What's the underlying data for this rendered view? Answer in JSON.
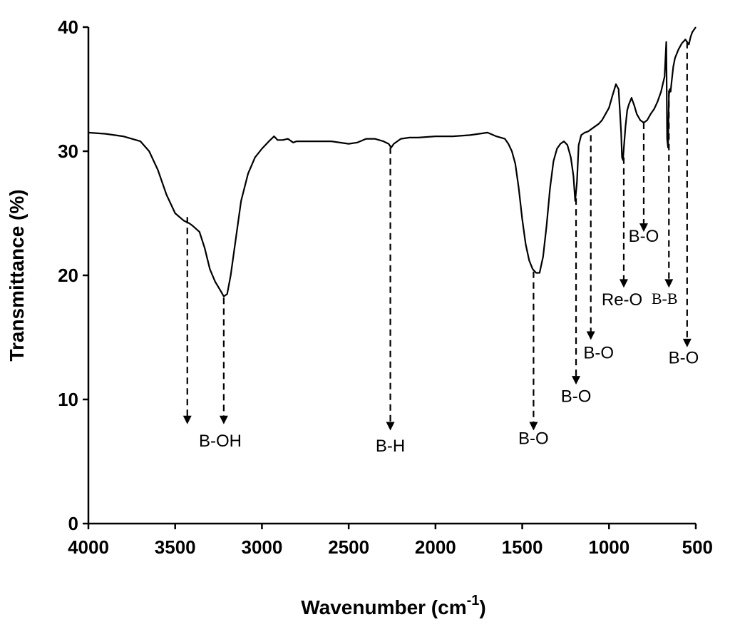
{
  "chart_data": {
    "type": "line",
    "xlabel": "Wavenumber (cm",
    "xlabel_superscript": "-1",
    "xlabel_close": ")",
    "ylabel": "Transmittance (%)",
    "xlim": [
      4000,
      500
    ],
    "ylim": [
      0,
      40
    ],
    "x_reversed": true,
    "grid": false,
    "legend": false,
    "x_ticks": [
      {
        "value": 4000,
        "label": "4000"
      },
      {
        "value": 3500,
        "label": "3500"
      },
      {
        "value": 3000,
        "label": "3000"
      },
      {
        "value": 2500,
        "label": "2500"
      },
      {
        "value": 2000,
        "label": "2000"
      },
      {
        "value": 1500,
        "label": "1500"
      },
      {
        "value": 1000,
        "label": "1000"
      },
      {
        "value": 500,
        "label": "500"
      }
    ],
    "y_ticks": [
      {
        "value": 0,
        "label": "0"
      },
      {
        "value": 10,
        "label": "10"
      },
      {
        "value": 20,
        "label": "20"
      },
      {
        "value": 30,
        "label": "30"
      },
      {
        "value": 40,
        "label": "40"
      }
    ],
    "line_color": "#000000",
    "series": [
      {
        "x": [
          4000,
          3900,
          3800,
          3700,
          3650,
          3600,
          3550,
          3500,
          3450,
          3420,
          3400,
          3360,
          3330,
          3300,
          3270,
          3240,
          3220,
          3200,
          3180,
          3150,
          3120,
          3080,
          3040,
          3000,
          2960,
          2930,
          2910,
          2880,
          2850,
          2820,
          2800,
          2700,
          2600,
          2500,
          2450,
          2400,
          2350,
          2300,
          2270,
          2255,
          2240,
          2200,
          2150,
          2100,
          2000,
          1900,
          1800,
          1700,
          1650,
          1600,
          1580,
          1560,
          1540,
          1520,
          1500,
          1480,
          1460,
          1440,
          1420,
          1400,
          1380,
          1360,
          1340,
          1320,
          1300,
          1280,
          1260,
          1240,
          1220,
          1205,
          1195,
          1185,
          1175,
          1160,
          1140,
          1120,
          1100,
          1080,
          1060,
          1040,
          1020,
          1000,
          980,
          960,
          945,
          930,
          925,
          920,
          915,
          905,
          895,
          885,
          870,
          855,
          840,
          820,
          800,
          780,
          760,
          740,
          720,
          700,
          690,
          680,
          670,
          665,
          660,
          655,
          650,
          645,
          640,
          630,
          620,
          600,
          580,
          560,
          550,
          540,
          530,
          520,
          510,
          500
        ],
        "y": [
          31.5,
          31.4,
          31.2,
          30.8,
          30.0,
          28.5,
          26.5,
          25.0,
          24.4,
          24.2,
          24.0,
          23.5,
          22.2,
          20.5,
          19.5,
          18.8,
          18.3,
          18.5,
          20.0,
          23.0,
          26.0,
          28.2,
          29.5,
          30.2,
          30.8,
          31.2,
          30.9,
          30.9,
          31.0,
          30.7,
          30.8,
          30.8,
          30.8,
          30.6,
          30.7,
          31.0,
          31.0,
          30.8,
          30.6,
          30.3,
          30.6,
          31.0,
          31.1,
          31.1,
          31.2,
          31.2,
          31.3,
          31.5,
          31.2,
          31.0,
          30.6,
          30.0,
          29.0,
          27.0,
          24.5,
          22.5,
          21.2,
          20.5,
          20.2,
          20.2,
          21.5,
          24.0,
          27.0,
          29.2,
          30.2,
          30.6,
          30.8,
          30.5,
          29.5,
          28.0,
          26.0,
          27.5,
          30.5,
          31.3,
          31.5,
          31.6,
          31.8,
          32.0,
          32.2,
          32.5,
          33.0,
          33.5,
          34.5,
          35.4,
          35.0,
          31.5,
          29.5,
          29.3,
          30.2,
          32.0,
          33.3,
          33.8,
          34.3,
          33.7,
          33.0,
          32.5,
          32.3,
          32.5,
          33.0,
          33.4,
          34.0,
          34.8,
          35.4,
          36.0,
          38.8,
          31.0,
          30.3,
          34.5,
          35.0,
          34.8,
          35.5,
          36.8,
          37.5,
          38.2,
          38.7,
          39.0,
          38.8,
          38.6,
          39.2,
          39.6,
          39.8,
          40.0
        ]
      }
    ],
    "annotations": [
      {
        "arrow_x": 3430,
        "y_from": 24.7,
        "y_to": 8.0,
        "label": "B-OH",
        "label_x": 3240,
        "label_y": 6.2,
        "font": "sans"
      },
      {
        "arrow_x": 3220,
        "y_from": 18.2,
        "y_to": 8.0,
        "label": "",
        "label_x": 3220,
        "label_y": 6.2,
        "font": "sans"
      },
      {
        "arrow_x": 2260,
        "y_from": 30.3,
        "y_to": 7.5,
        "label": "B-H",
        "label_x": 2260,
        "label_y": 5.8,
        "font": "sans"
      },
      {
        "arrow_x": 1435,
        "y_from": 20.3,
        "y_to": 7.5,
        "label": "B-O",
        "label_x": 1435,
        "label_y": 6.4,
        "font": "sans"
      },
      {
        "arrow_x": 1190,
        "y_from": 26.2,
        "y_to": 11.2,
        "label": "B-O",
        "label_x": 1190,
        "label_y": 9.8,
        "font": "sans"
      },
      {
        "arrow_x": 1105,
        "y_from": 31.3,
        "y_to": 14.8,
        "label": "B-O",
        "label_x": 1060,
        "label_y": 13.3,
        "font": "sans"
      },
      {
        "arrow_x": 915,
        "y_from": 29.5,
        "y_to": 19.0,
        "label": "Re-O",
        "label_x": 925,
        "label_y": 17.6,
        "font": "sans"
      },
      {
        "arrow_x": 800,
        "y_from": 32.3,
        "y_to": 23.5,
        "label": "B-O",
        "label_x": 800,
        "label_y": 22.7,
        "font": "sans"
      },
      {
        "arrow_x": 655,
        "y_from": 34.9,
        "y_to": 19.0,
        "label": "B-B",
        "label_x": 680,
        "label_y": 17.7,
        "font": "serif"
      },
      {
        "arrow_x": 550,
        "y_from": 38.8,
        "y_to": 14.2,
        "label": "B-O",
        "label_x": 570,
        "label_y": 12.9,
        "font": "sans"
      }
    ]
  }
}
